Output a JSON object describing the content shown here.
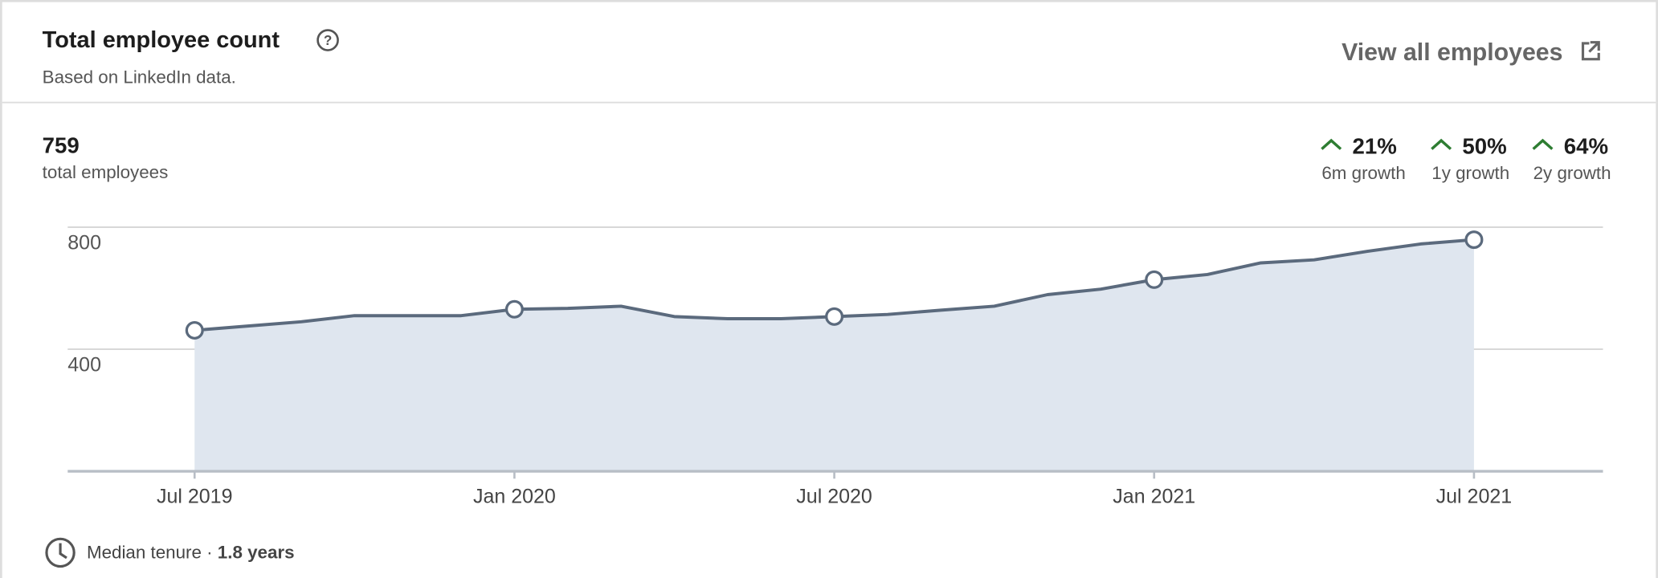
{
  "header": {
    "title": "Total employee count",
    "subtitle": "Based on LinkedIn data.",
    "link": "View all employees"
  },
  "summary": {
    "total": "759",
    "total_label": "total employees",
    "growth": [
      {
        "value": "21%",
        "label": "6m growth"
      },
      {
        "value": "50%",
        "label": "1y growth"
      },
      {
        "value": "64%",
        "label": "2y growth"
      }
    ]
  },
  "chart_data": {
    "type": "area",
    "categories": [
      "Jul 2019",
      null,
      null,
      null,
      null,
      null,
      "Jan 2020",
      null,
      null,
      null,
      null,
      null,
      "Jul 2020",
      null,
      null,
      null,
      null,
      null,
      "Jan 2021",
      null,
      null,
      null,
      null,
      null,
      "Jul 2021"
    ],
    "values": [
      462,
      476,
      490,
      510,
      510,
      510,
      531,
      534,
      541,
      507,
      500,
      500,
      507,
      514,
      528,
      541,
      579,
      597,
      628,
      645,
      683,
      693,
      721,
      745,
      759
    ],
    "color": "#5b6a7d",
    "fill": "#dfe6ef",
    "ylim": [
      0,
      800
    ],
    "yticks": [
      400,
      800
    ],
    "grid": true
  },
  "footer": {
    "label": "Median tenure",
    "separator": "·",
    "value": "1.8 years"
  }
}
